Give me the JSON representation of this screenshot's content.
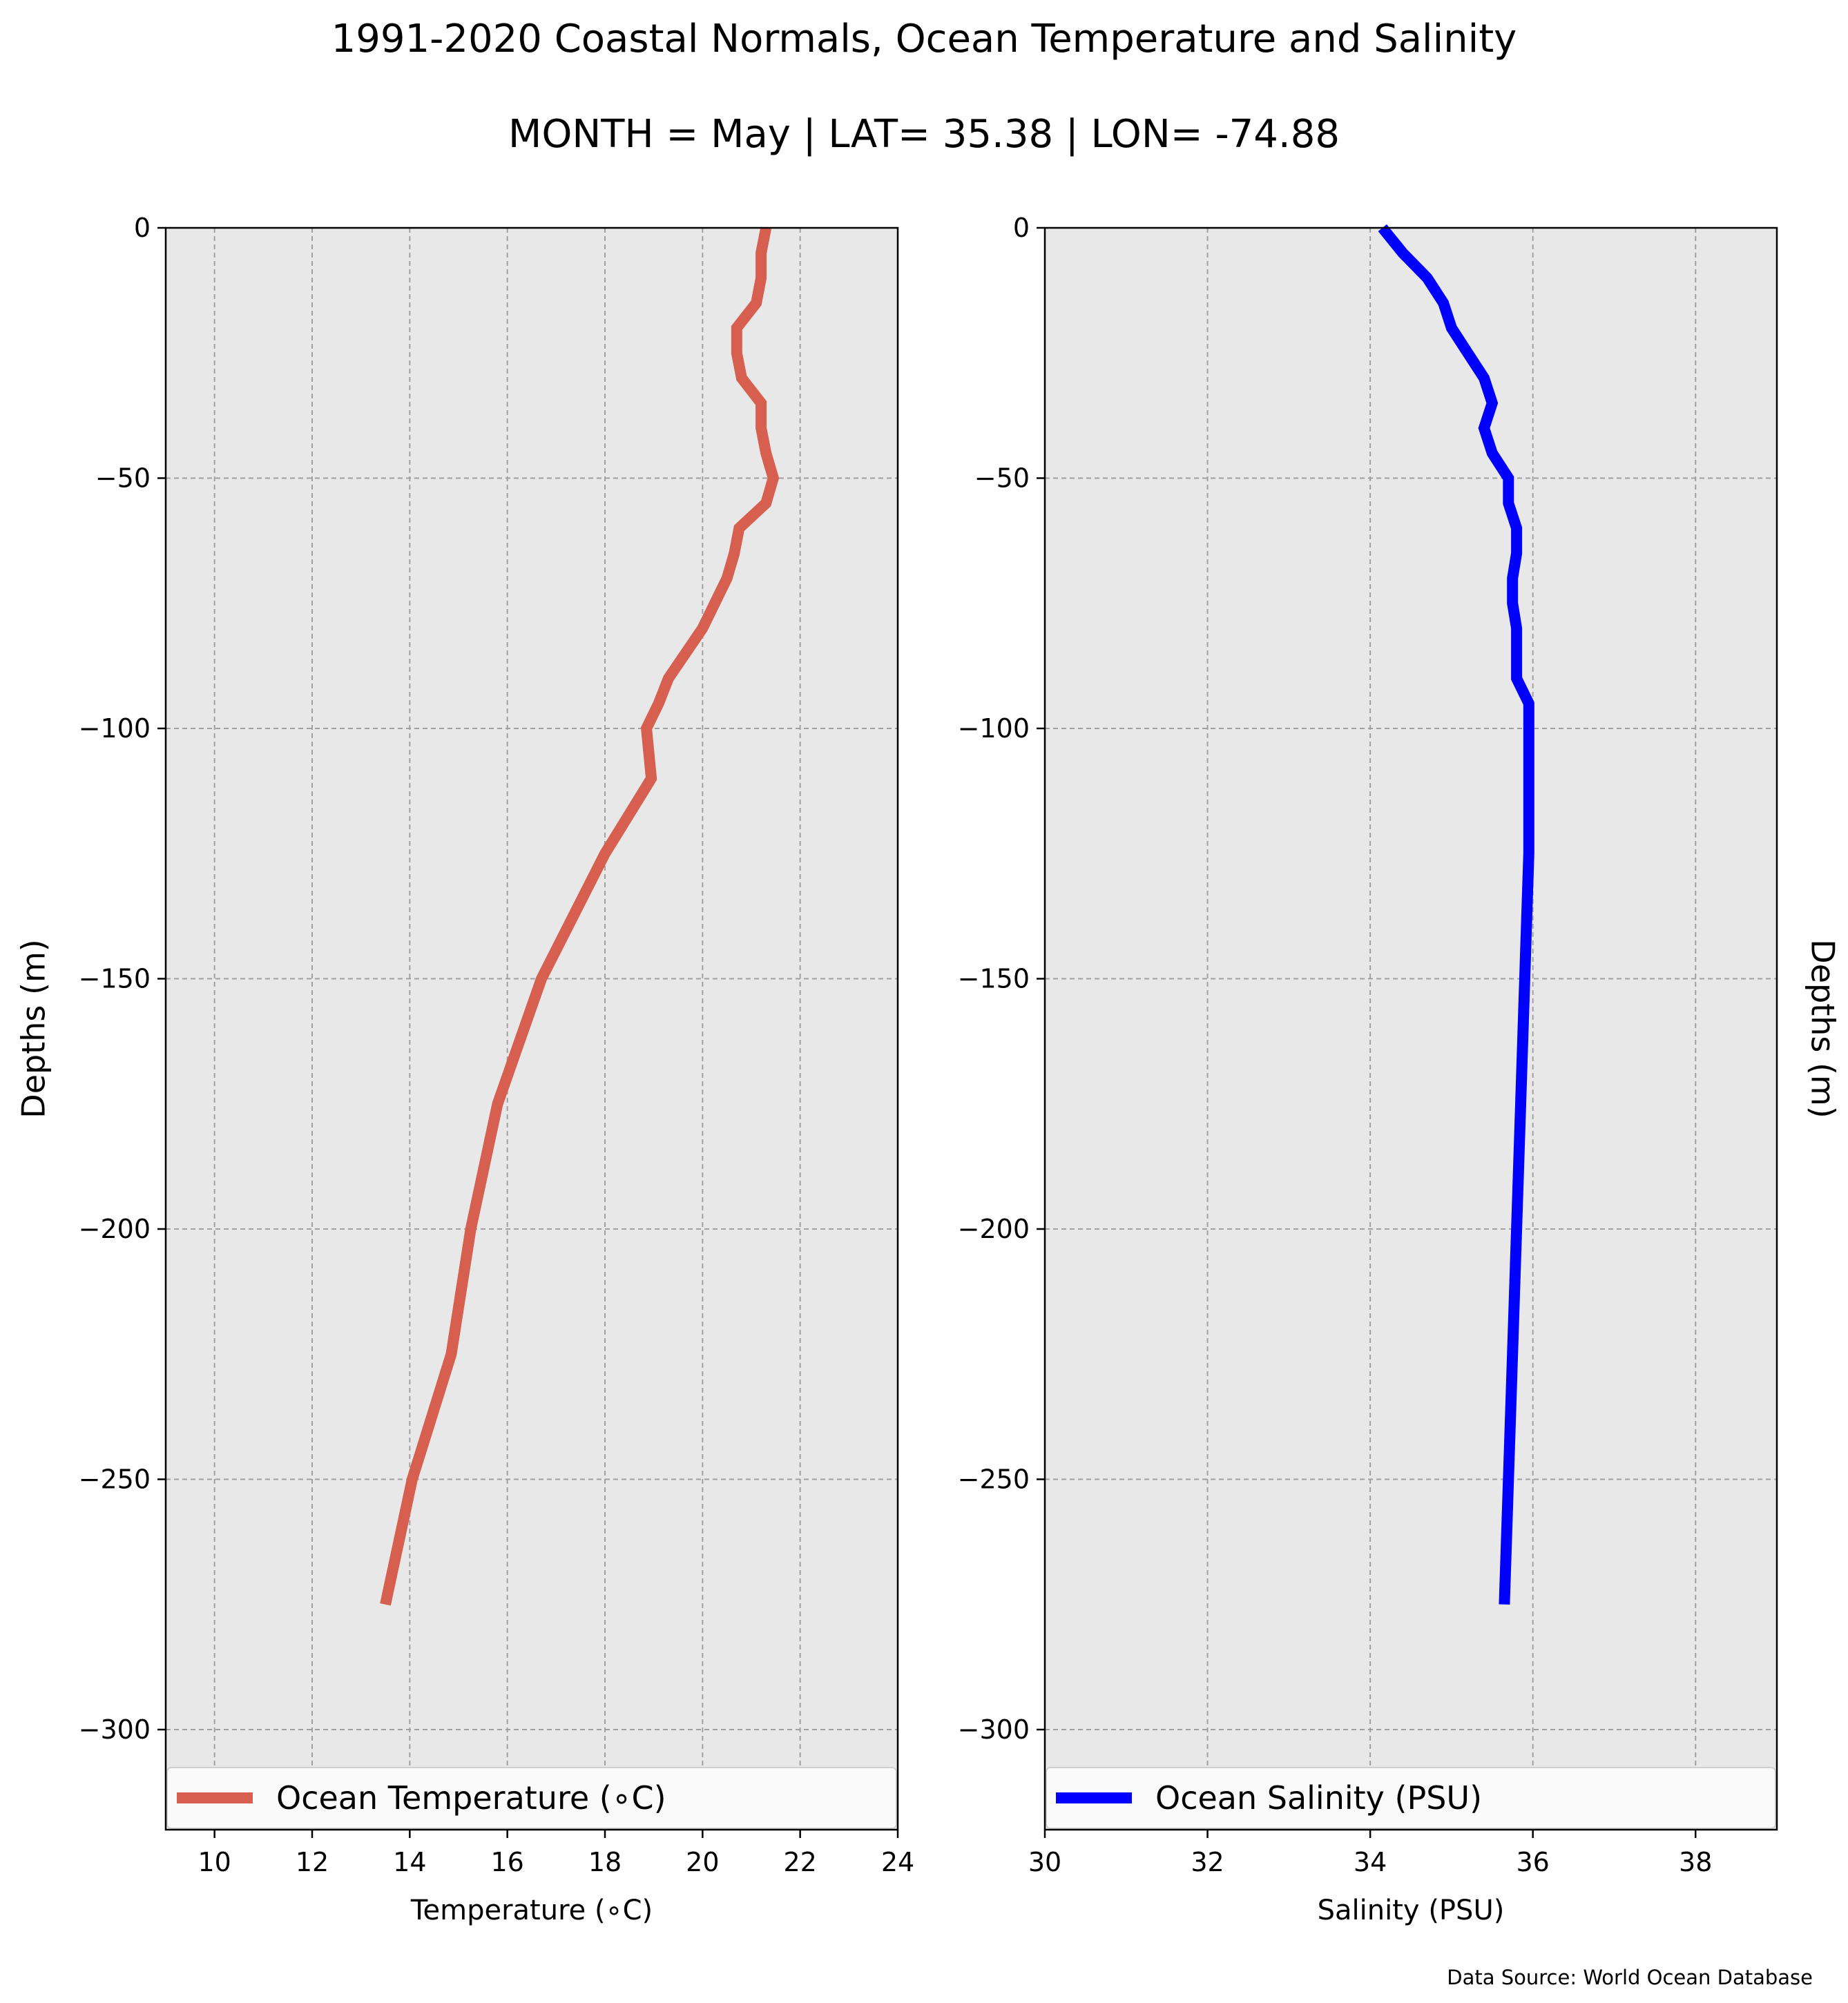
{
  "figure": {
    "title": "1991-2020 Coastal Normals, Ocean Temperature and Salinity",
    "subtitle": "MONTH = May | LAT= 35.38 | LON= -74.88",
    "source": "Data Source: World Ocean Database"
  },
  "chart_data": [
    {
      "type": "line",
      "xlabel": "Temperature ($^\\circ$C)",
      "xlabel_display": "Temperature (∘C)",
      "ylabel": "Depths (m)",
      "xlim": [
        9,
        24
      ],
      "ylim": [
        -320,
        0
      ],
      "xticks": [
        10,
        12,
        14,
        16,
        18,
        20,
        22,
        24
      ],
      "xtick_labels": [
        "10",
        "12",
        "14",
        "16",
        "18",
        "20",
        "22",
        "24"
      ],
      "yticks": [
        0,
        -50,
        -100,
        -150,
        -200,
        -250,
        -300
      ],
      "ytick_labels": [
        "0",
        "−50",
        "−100",
        "−150",
        "−200",
        "−250",
        "−300"
      ],
      "grid": true,
      "legend_position": "bottom",
      "series": [
        {
          "name": "Ocean Temperature (∘C)",
          "color": "#d65f4f",
          "x": [
            21.3,
            21.2,
            21.2,
            21.1,
            20.7,
            20.7,
            20.8,
            21.2,
            21.2,
            21.3,
            21.45,
            21.3,
            20.75,
            20.65,
            20.5,
            20.25,
            20.0,
            19.65,
            19.3,
            19.1,
            18.85,
            18.95,
            18.0,
            16.7,
            15.8,
            15.25,
            14.85,
            14.05,
            13.5
          ],
          "y": [
            0,
            -5,
            -10,
            -15,
            -20,
            -25,
            -30,
            -35,
            -40,
            -45,
            -50,
            -55,
            -60,
            -65,
            -70,
            -75,
            -80,
            -85,
            -90,
            -95,
            -100,
            -110,
            -125,
            -150,
            -175,
            -200,
            -225,
            -250,
            -275
          ]
        }
      ]
    },
    {
      "type": "line",
      "xlabel": "Salinity (PSU)",
      "ylabel": "Depths (m)",
      "xlim": [
        30,
        39
      ],
      "ylim": [
        -320,
        0
      ],
      "xticks": [
        30,
        32,
        34,
        36,
        38
      ],
      "xtick_labels": [
        "30",
        "32",
        "34",
        "36",
        "38"
      ],
      "yticks": [
        0,
        -50,
        -100,
        -150,
        -200,
        -250,
        -300
      ],
      "ytick_labels": [
        "0",
        "−50",
        "−100",
        "−150",
        "−200",
        "−250",
        "−300"
      ],
      "grid": true,
      "legend_position": "bottom",
      "series": [
        {
          "name": "Ocean Salinity (PSU)",
          "color": "#0000ff",
          "x": [
            34.15,
            34.4,
            34.7,
            34.9,
            35.0,
            35.2,
            35.4,
            35.5,
            35.4,
            35.5,
            35.7,
            35.7,
            35.8,
            35.8,
            35.75,
            35.75,
            35.8,
            35.8,
            35.95,
            35.95,
            35.95,
            35.9,
            35.85,
            35.75,
            35.65
          ],
          "y": [
            0,
            -5,
            -10,
            -15,
            -20,
            -25,
            -30,
            -35,
            -40,
            -45,
            -50,
            -55,
            -60,
            -65,
            -70,
            -75,
            -80,
            -90,
            -95,
            -100,
            -125,
            -150,
            -175,
            -225,
            -275
          ]
        }
      ]
    }
  ]
}
